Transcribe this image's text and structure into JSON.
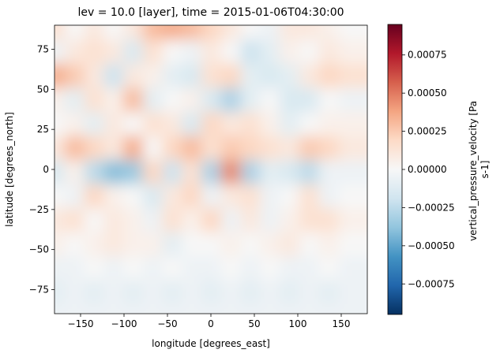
{
  "chart_data": {
    "type": "heatmap",
    "title": "lev = 10.0 [layer], time = 2015-01-06T04:30:00",
    "xlabel": "longitude [degrees_east]",
    "ylabel": "latitude [degrees_north]",
    "xlim": [
      -180,
      180
    ],
    "ylim": [
      -90,
      90
    ],
    "xticks": [
      -150,
      -100,
      -50,
      0,
      50,
      100,
      150
    ],
    "yticks": [
      -75,
      -50,
      -25,
      0,
      25,
      50,
      75
    ],
    "xtick_labels": [
      "−150",
      "−100",
      "−50",
      "0",
      "50",
      "100",
      "150"
    ],
    "ytick_labels": [
      "−75",
      "−50",
      "−25",
      "0",
      "25",
      "50",
      "75"
    ],
    "grid": false,
    "colormap": "RdBu_r",
    "colorbar": {
      "label": "vertical_pressure_velocity [Pa s-1]",
      "label_lines": [
        "vertical_pressure_velocity [Pa",
        "s-1]"
      ],
      "vmin": -0.00095,
      "vmax": 0.00095,
      "ticks": [
        -0.00075,
        -0.0005,
        -0.00025,
        0,
        0.00025,
        0.0005,
        0.00075
      ],
      "tick_labels": [
        "−0.00075",
        "−0.00050",
        "−0.00025",
        "0.00000",
        "0.00025",
        "0.00050",
        "0.00075"
      ]
    },
    "colorbar_stops": [
      "#053061",
      "#2166ac",
      "#4393c3",
      "#92c5de",
      "#d1e5f0",
      "#f7f7f7",
      "#fddbc7",
      "#f4a582",
      "#d6604d",
      "#b2182b",
      "#67001f"
    ],
    "field_grid": {
      "lon_start": -180,
      "lon_step": 22.5,
      "lat_start": 90,
      "lat_step": -15,
      "values": [
        [
          0.00015,
          0.0,
          0.0001,
          0.0,
          0.0001,
          0.0003,
          0.00035,
          0.0003,
          0.0002,
          0.0001,
          0.0,
          -5e-05,
          0.0001,
          0.0001,
          5e-05,
          0.0
        ],
        [
          -5e-05,
          0.0001,
          0.00015,
          0.0001,
          -0.00015,
          0.00015,
          0.0,
          -5e-05,
          0.0001,
          0.0,
          -0.0002,
          -0.0001,
          5e-05,
          0.0,
          0.0001,
          5e-05
        ],
        [
          0.00035,
          0.00025,
          0.0001,
          -0.0002,
          0.0001,
          5e-05,
          -0.0001,
          -0.00015,
          0.00015,
          0.0002,
          -0.0001,
          -0.00015,
          -0.0001,
          0.0001,
          0.0002,
          0.00015
        ],
        [
          5e-05,
          -0.0001,
          0.00015,
          5e-05,
          0.0003,
          -0.0001,
          0.0,
          5e-05,
          -0.00015,
          -0.0003,
          -0.0001,
          0.0,
          -0.00015,
          -0.00015,
          0.0,
          -5e-05
        ],
        [
          0.0,
          5e-05,
          -0.0001,
          0.0001,
          0.0,
          0.00015,
          0.0001,
          -0.00015,
          0.0002,
          0.0001,
          0.00015,
          5e-05,
          -0.0001,
          0.0,
          5e-05,
          5e-05
        ],
        [
          0.0001,
          0.0003,
          0.0002,
          0.0001,
          0.00035,
          0.0,
          0.0002,
          0.0003,
          0.00015,
          0.00025,
          0.0002,
          0.00015,
          0.0001,
          0.00025,
          0.0002,
          0.0001
        ],
        [
          -0.00015,
          5e-05,
          -0.00025,
          -0.0004,
          -0.00035,
          0.0002,
          -0.0002,
          0.00015,
          -0.0003,
          0.00045,
          -0.0003,
          -0.0001,
          -0.00015,
          -0.00025,
          -5e-05,
          -5e-05
        ],
        [
          0.0,
          -5e-05,
          0.0002,
          5e-05,
          0.0,
          -0.00015,
          0.0001,
          0.0002,
          -5e-05,
          0.0001,
          0.00015,
          -5e-05,
          0.0,
          0.00015,
          -5e-05,
          0.0
        ],
        [
          0.0001,
          0.00015,
          0.0,
          0.0001,
          5e-05,
          -5e-05,
          0.00015,
          5e-05,
          0.0002,
          -5e-05,
          0.0001,
          -5e-05,
          5e-05,
          0.00015,
          0.00015,
          5e-05
        ],
        [
          5e-05,
          0.0,
          5e-05,
          0.0001,
          5e-05,
          5e-05,
          -0.0001,
          0.0,
          0.0,
          5e-05,
          0.0,
          5e-05,
          0.0001,
          0.0,
          5e-05,
          0.0
        ],
        [
          -5e-05,
          -5e-05,
          0.0,
          -5e-05,
          0.0,
          -5e-05,
          0.0,
          -5e-05,
          -5e-05,
          0.0,
          -5e-05,
          0.0,
          -5e-05,
          -5e-05,
          0.0,
          -5e-05
        ],
        [
          -0.0001,
          -5e-05,
          -0.0001,
          -5e-05,
          -0.0001,
          -5e-05,
          -0.0001,
          -5e-05,
          -0.0001,
          -5e-05,
          -0.0001,
          -5e-05,
          -0.0001,
          -5e-05,
          -0.0001,
          -5e-05
        ],
        [
          -5e-05,
          -5e-05,
          -5e-05,
          -5e-05,
          -5e-05,
          -5e-05,
          -5e-05,
          -5e-05,
          -5e-05,
          -5e-05,
          -5e-05,
          -5e-05,
          -5e-05,
          -5e-05,
          -5e-05,
          -5e-05
        ]
      ]
    }
  }
}
